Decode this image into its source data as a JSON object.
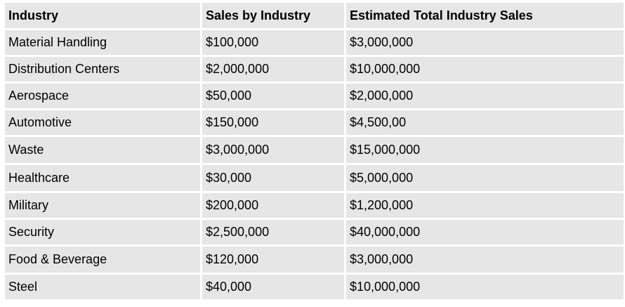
{
  "table": {
    "headers": [
      "Industry",
      "Sales by Industry",
      "Estimated Total Industry Sales"
    ],
    "rows": [
      [
        "Material Handling",
        "$100,000",
        "$3,000,000"
      ],
      [
        "Distribution Centers",
        "$2,000,000",
        "$10,000,000"
      ],
      [
        "Aerospace",
        "$50,000",
        "$2,000,000"
      ],
      [
        "Automotive",
        "$150,000",
        "$4,500,00"
      ],
      [
        "Waste",
        "$3,000,000",
        "$15,000,000"
      ],
      [
        "Healthcare",
        "$30,000",
        "$5,000,000"
      ],
      [
        "Military",
        "$200,000",
        "$1,200,000"
      ],
      [
        "Security",
        "$2,500,000",
        "$40,000,000"
      ],
      [
        "Food & Beverage",
        "$120,000",
        "$3,000,000"
      ],
      [
        "Steel",
        "$40,000",
        "$10,000,000"
      ]
    ]
  }
}
